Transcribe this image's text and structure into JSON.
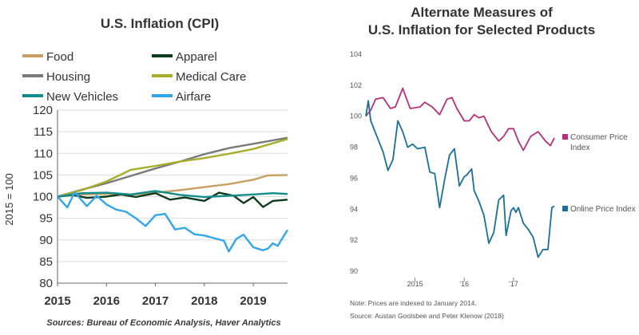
{
  "chart_data": [
    {
      "type": "line",
      "title": "U.S. Inflation (CPI)",
      "xlabel": "",
      "ylabel": "2015 = 100",
      "ylim": [
        80,
        120
      ],
      "xlim": [
        2015,
        2019.7
      ],
      "x_ticks": [
        "2015",
        "2016",
        "2017",
        "2018",
        "2019"
      ],
      "y_ticks": [
        "80",
        "85",
        "90",
        "95",
        "100",
        "105",
        "110",
        "115",
        "120"
      ],
      "source": "Sources: Bureau of Economic Analysis, Haver Analytics",
      "legend_position": "top",
      "series": [
        {
          "name": "Food",
          "color": "#c9a063",
          "x": [
            2015,
            2015.5,
            2016,
            2016.5,
            2017,
            2017.5,
            2018,
            2018.5,
            2019,
            2019.3,
            2019.7
          ],
          "values": [
            100,
            100.5,
            100.6,
            100.4,
            100.9,
            101.5,
            102.2,
            102.9,
            103.9,
            104.9,
            105.0
          ]
        },
        {
          "name": "Apparel",
          "color": "#0d3b1e",
          "x": [
            2015,
            2015.3,
            2015.6,
            2016,
            2016.3,
            2016.6,
            2017,
            2017.3,
            2017.6,
            2018,
            2018.3,
            2018.6,
            2018.8,
            2019,
            2019.2,
            2019.4,
            2019.7
          ],
          "values": [
            100,
            100.4,
            99.7,
            100.0,
            100.5,
            99.9,
            100.8,
            99.3,
            99.8,
            99.0,
            100.9,
            100.2,
            98.5,
            99.9,
            97.6,
            99.0,
            99.3
          ]
        },
        {
          "name": "Housing",
          "color": "#7a7a7a",
          "x": [
            2015,
            2015.5,
            2016,
            2016.5,
            2017,
            2017.5,
            2018,
            2018.5,
            2019,
            2019.7
          ],
          "values": [
            100,
            101.6,
            103.1,
            104.8,
            106.5,
            108.1,
            109.8,
            111.2,
            112.2,
            113.6
          ]
        },
        {
          "name": "Medical Care",
          "color": "#a8ad2a",
          "x": [
            2015,
            2015.5,
            2016,
            2016.5,
            2017,
            2017.5,
            2018,
            2018.5,
            2019,
            2019.7
          ],
          "values": [
            100,
            101.5,
            103.5,
            106.2,
            107.1,
            108.1,
            108.9,
            109.9,
            111.0,
            113.3
          ]
        },
        {
          "name": "New Vehicles",
          "color": "#138c8c",
          "x": [
            2015,
            2015.5,
            2016,
            2016.5,
            2017,
            2017.5,
            2018,
            2018.5,
            2019,
            2019.4,
            2019.7
          ],
          "values": [
            100,
            100.8,
            100.9,
            100.5,
            101.3,
            100.4,
            99.9,
            100.2,
            100.5,
            100.8,
            100.6
          ]
        },
        {
          "name": "Airfare",
          "color": "#33a6ea",
          "x": [
            2015,
            2015.2,
            2015.35,
            2015.6,
            2015.8,
            2016,
            2016.2,
            2016.4,
            2016.6,
            2016.8,
            2017,
            2017.2,
            2017.4,
            2017.6,
            2017.8,
            2018,
            2018.2,
            2018.4,
            2018.5,
            2018.65,
            2018.8,
            2019,
            2019.2,
            2019.3,
            2019.4,
            2019.5,
            2019.7
          ],
          "values": [
            100,
            97.5,
            101.0,
            97.8,
            100.2,
            98.2,
            97.0,
            96.5,
            95.0,
            93.2,
            95.7,
            96.0,
            92.4,
            92.8,
            91.3,
            91.0,
            90.4,
            89.8,
            87.3,
            90.2,
            91.2,
            88.3,
            87.6,
            88.0,
            89.2,
            88.6,
            92.3
          ]
        }
      ]
    },
    {
      "type": "line",
      "title_line1": "Alternate Measures of",
      "title_line2": "U.S. Inflation for Selected Products",
      "xlabel": "",
      "ylabel": "",
      "ylim": [
        90,
        104
      ],
      "xlim": [
        2014,
        2017.83
      ],
      "x_ticks": [
        "2015",
        "'16",
        "'17"
      ],
      "y_ticks": [
        "104",
        "102",
        "100",
        "98",
        "96",
        "94",
        "92",
        "90"
      ],
      "note": "Note: Prices are indexed to January 2014.",
      "source": "Source: Austan Goolsbee and Peter Klenow (2018)",
      "legend_position": "right",
      "series": [
        {
          "name": "Consumer Price Index",
          "label_line1": "Consumer Price",
          "label_line2": "Index",
          "color": "#b5307a",
          "x": [
            2014,
            2014.1,
            2014.2,
            2014.35,
            2014.5,
            2014.6,
            2014.75,
            2014.9,
            2015.1,
            2015.2,
            2015.35,
            2015.5,
            2015.65,
            2015.75,
            2015.85,
            2016,
            2016.1,
            2016.2,
            2016.3,
            2016.4,
            2016.55,
            2016.7,
            2016.8,
            2016.9,
            2017,
            2017.1,
            2017.2,
            2017.35,
            2017.5,
            2017.65,
            2017.75,
            2017.83
          ],
          "values": [
            100,
            100.4,
            101.1,
            101.2,
            100.5,
            100.6,
            101.8,
            100.5,
            100.6,
            100.9,
            100.6,
            100.1,
            101.1,
            101.2,
            100.5,
            99.7,
            99.7,
            100.1,
            99.9,
            100.0,
            99.0,
            98.4,
            98.7,
            99.2,
            99.2,
            98.4,
            97.8,
            98.7,
            99.0,
            98.4,
            98.1,
            98.6
          ]
        },
        {
          "name": "Online Price Index",
          "label_line1": "Online Price Index",
          "color": "#1a6f9a",
          "x": [
            2014,
            2014.05,
            2014.1,
            2014.2,
            2014.35,
            2014.45,
            2014.55,
            2014.65,
            2014.75,
            2014.85,
            2014.95,
            2015.05,
            2015.2,
            2015.3,
            2015.4,
            2015.5,
            2015.6,
            2015.7,
            2015.8,
            2015.9,
            2016.0,
            2016.05,
            2016.15,
            2016.2,
            2016.3,
            2016.4,
            2016.5,
            2016.6,
            2016.7,
            2016.8,
            2016.85,
            2016.95,
            2017.0,
            2017.05,
            2017.1,
            2017.2,
            2017.3,
            2017.4,
            2017.5,
            2017.6,
            2017.7,
            2017.78,
            2017.83
          ],
          "values": [
            100,
            101.0,
            99.7,
            98.9,
            97.7,
            96.5,
            97.2,
            99.7,
            99.0,
            98.0,
            98.2,
            97.9,
            98.0,
            96.4,
            96.3,
            94.1,
            95.9,
            97.5,
            97.9,
            95.5,
            96.1,
            96.2,
            96.6,
            95.2,
            94.5,
            93.6,
            91.8,
            92.5,
            94.6,
            94.9,
            92.3,
            93.9,
            94.1,
            93.8,
            94.1,
            93.1,
            92.7,
            92.2,
            90.9,
            91.4,
            91.4,
            94.1,
            94.2
          ]
        }
      ]
    }
  ]
}
